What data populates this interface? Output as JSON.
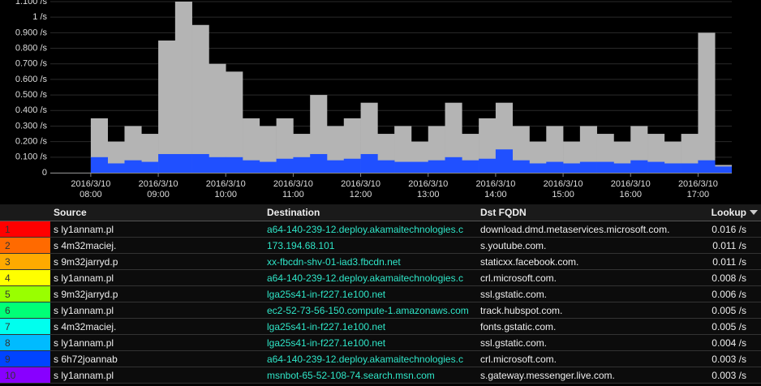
{
  "chart_data": {
    "type": "bar",
    "x": [
      7.75,
      8.0,
      8.25,
      8.5,
      8.75,
      9.0,
      9.25,
      9.5,
      9.75,
      10.0,
      10.25,
      10.5,
      10.75,
      11.0,
      11.25,
      11.5,
      11.75,
      12.0,
      12.25,
      12.5,
      12.75,
      13.0,
      13.25,
      13.5,
      13.75,
      14.0,
      14.25,
      14.5,
      14.75,
      15.0,
      15.25,
      15.5,
      15.75,
      16.0,
      16.25,
      16.5,
      16.75,
      17.0,
      17.25
    ],
    "series": [
      {
        "color": "#b4b4b4",
        "values": [
          0,
          0.35,
          0.2,
          0.3,
          0.25,
          0.85,
          1.1,
          0.95,
          0.7,
          0.65,
          0.35,
          0.3,
          0.35,
          0.25,
          0.5,
          0.3,
          0.35,
          0.45,
          0.25,
          0.3,
          0.2,
          0.3,
          0.45,
          0.25,
          0.35,
          0.45,
          0.3,
          0.2,
          0.3,
          0.2,
          0.3,
          0.25,
          0.2,
          0.3,
          0.25,
          0.2,
          0.25,
          0.9,
          0.05
        ]
      },
      {
        "color": "#2050ff",
        "values": [
          0,
          0.1,
          0.06,
          0.08,
          0.07,
          0.12,
          0.12,
          0.12,
          0.1,
          0.1,
          0.08,
          0.07,
          0.09,
          0.1,
          0.12,
          0.08,
          0.09,
          0.12,
          0.08,
          0.07,
          0.07,
          0.08,
          0.1,
          0.08,
          0.09,
          0.15,
          0.08,
          0.06,
          0.07,
          0.06,
          0.07,
          0.07,
          0.06,
          0.08,
          0.07,
          0.06,
          0.06,
          0.08,
          0.04
        ]
      }
    ],
    "xlim": [
      7.4,
      17.5
    ],
    "xticks": [
      {
        "value": 8,
        "label": [
          "2016/3/10",
          "08:00"
        ]
      },
      {
        "value": 9,
        "label": [
          "2016/3/10",
          "09:00"
        ]
      },
      {
        "value": 10,
        "label": [
          "2016/3/10",
          "10:00"
        ]
      },
      {
        "value": 11,
        "label": [
          "2016/3/10",
          "11:00"
        ]
      },
      {
        "value": 12,
        "label": [
          "2016/3/10",
          "12:00"
        ]
      },
      {
        "value": 13,
        "label": [
          "2016/3/10",
          "13:00"
        ]
      },
      {
        "value": 14,
        "label": [
          "2016/3/10",
          "14:00"
        ]
      },
      {
        "value": 15,
        "label": [
          "2016/3/10",
          "15:00"
        ]
      },
      {
        "value": 16,
        "label": [
          "2016/3/10",
          "16:00"
        ]
      },
      {
        "value": 17,
        "label": [
          "2016/3/10",
          "17:00"
        ]
      }
    ],
    "ylim": [
      0,
      1.1
    ],
    "yticks": [
      0,
      {
        "value": 0.1,
        "label": "0.100 /s"
      },
      {
        "value": 0.2,
        "label": "0.200 /s"
      },
      {
        "value": 0.3,
        "label": "0.300 /s"
      },
      {
        "value": 0.4,
        "label": "0.400 /s"
      },
      {
        "value": 0.5,
        "label": "0.500 /s"
      },
      {
        "value": 0.6,
        "label": "0.600 /s"
      },
      {
        "value": 0.7,
        "label": "0.700 /s"
      },
      {
        "value": 0.8,
        "label": "0.800 /s"
      },
      {
        "value": 0.9,
        "label": "0.900 /s"
      },
      {
        "value": 1,
        "label": "1 /s"
      },
      {
        "value": 1.1,
        "label": "1.100 /s"
      }
    ],
    "grid": true
  },
  "table": {
    "columns": [
      "Source",
      "Destination",
      "Dst FQDN",
      "Lookup"
    ],
    "rows": [
      {
        "index": "1",
        "color": "#ff0000",
        "cells": [
          "s ly1annam.pl",
          "a64-140-239-12.deploy.akamaitechnologies.c",
          "download.dmd.metaservices.microsoft.com.",
          "0.016 /s"
        ]
      },
      {
        "index": "2",
        "color": "#ff6a00",
        "cells": [
          "s 4m32maciej.",
          "173.194.68.101",
          "s.youtube.com.",
          "0.011 /s"
        ]
      },
      {
        "index": "3",
        "color": "#ffaa00",
        "cells": [
          "s 9m32jarryd.p",
          "xx-fbcdn-shv-01-iad3.fbcdn.net",
          "staticxx.facebook.com.",
          "0.011 /s"
        ]
      },
      {
        "index": "4",
        "color": "#ffff00",
        "cells": [
          "s ly1annam.pl",
          "a64-140-239-12.deploy.akamaitechnologies.c",
          "crl.microsoft.com.",
          "0.008 /s"
        ]
      },
      {
        "index": "5",
        "color": "#99ff00",
        "cells": [
          "s 9m32jarryd.p",
          "lga25s41-in-f227.1e100.net",
          "ssl.gstatic.com.",
          "0.006 /s"
        ]
      },
      {
        "index": "6",
        "color": "#00ff77",
        "cells": [
          "s ly1annam.pl",
          "ec2-52-73-56-150.compute-1.amazonaws.com",
          "track.hubspot.com.",
          "0.005 /s"
        ]
      },
      {
        "index": "7",
        "color": "#00ffee",
        "cells": [
          "s 4m32maciej.",
          "lga25s41-in-f227.1e100.net",
          "fonts.gstatic.com.",
          "0.005 /s"
        ]
      },
      {
        "index": "8",
        "color": "#00bbff",
        "cells": [
          "s ly1annam.pl",
          "lga25s41-in-f227.1e100.net",
          "ssl.gstatic.com.",
          "0.004 /s"
        ]
      },
      {
        "index": "9",
        "color": "#0044ff",
        "cells": [
          "s 6h72joannab",
          "a64-140-239-12.deploy.akamaitechnologies.c",
          "crl.microsoft.com.",
          "0.003 /s"
        ]
      },
      {
        "index": "10",
        "color": "#8800ff",
        "cells": [
          "s ly1annam.pl",
          "msnbot-65-52-108-74.search.msn.com",
          "s.gateway.messenger.live.com.",
          "0.003 /s"
        ]
      }
    ]
  }
}
